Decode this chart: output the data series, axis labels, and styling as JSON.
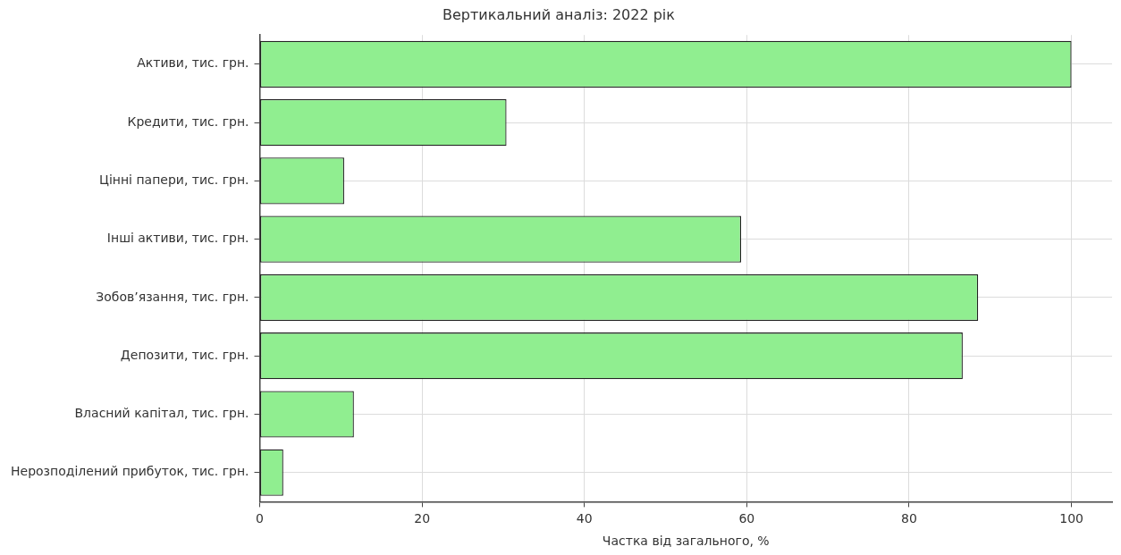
{
  "chart_data": {
    "type": "bar",
    "orientation": "horizontal",
    "title": "Вертикальний аналіз: 2022 рік",
    "xlabel": "Частка від загального, %",
    "categories": [
      "Активи, тис. грн.",
      "Кредити, тис. грн.",
      "Цінні папери, тис. грн.",
      "Інші активи, тис. грн.",
      "Зобов’язання, тис. грн.",
      "Депозити, тис. грн.",
      "Власний капітал, тис. грн.",
      "Нерозподілений прибуток, тис. грн."
    ],
    "values": [
      100,
      30.4,
      10.4,
      59.3,
      88.5,
      86.6,
      11.6,
      2.9
    ],
    "color": "#90ee90",
    "xlim": [
      0,
      105
    ],
    "xticks": [
      0,
      20,
      40,
      60,
      80,
      100
    ],
    "grid": true,
    "legend": false
  }
}
